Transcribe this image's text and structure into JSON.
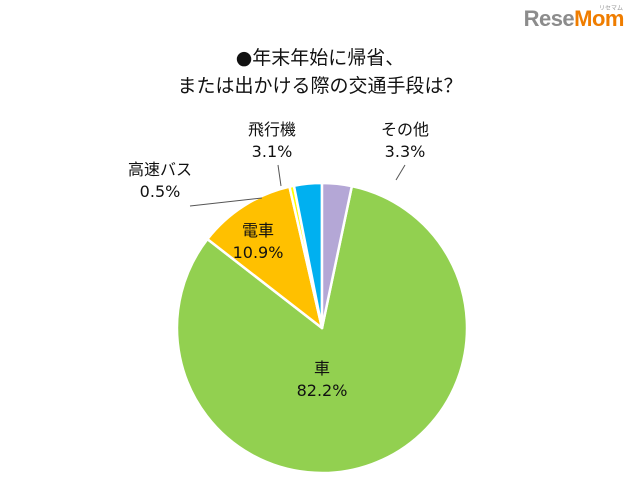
{
  "logo": {
    "main": "Rese",
    "accent": "Mom",
    "kana": "リセマム"
  },
  "chart_data": {
    "type": "pie",
    "title_lines": [
      "●年末年始に帰省、",
      "または出かける際の交通手段は？"
    ],
    "slices": [
      {
        "label": "車",
        "value": 82.2,
        "display": "82.2%",
        "color": "#92d050"
      },
      {
        "label": "電車",
        "value": 10.9,
        "display": "10.9%",
        "color": "#ffc000"
      },
      {
        "label": "高速バス",
        "value": 0.5,
        "display": "0.5%",
        "color": "#ffff00"
      },
      {
        "label": "飛行機",
        "value": 3.1,
        "display": "3.1%",
        "color": "#00b0f0"
      },
      {
        "label": "その他",
        "value": 3.3,
        "display": "3.3%",
        "color": "#b4a7d6"
      }
    ]
  }
}
